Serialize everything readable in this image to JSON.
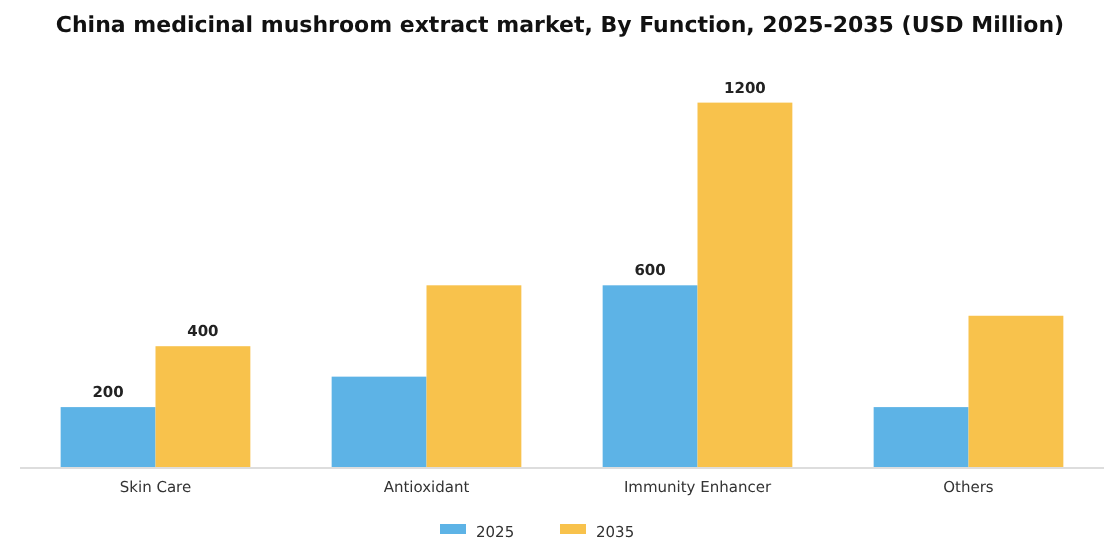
{
  "chart_data": {
    "type": "bar",
    "title": "China medicinal mushroom extract market, By Function, 2025-2035 (USD Million)",
    "categories": [
      "Skin Care",
      "Antioxidant",
      "Immunity Enhancer",
      "Others"
    ],
    "series": [
      {
        "name": "2025",
        "color": "#5db3e6",
        "values": [
          200,
          300,
          600,
          200
        ],
        "value_labels": [
          "200",
          null,
          "600",
          null
        ]
      },
      {
        "name": "2035",
        "color": "#f8c24c",
        "values": [
          400,
          600,
          1200,
          500
        ],
        "value_labels": [
          "400",
          null,
          "1200",
          null
        ]
      }
    ],
    "legend": "bottom",
    "tick_labels": "x"
  }
}
